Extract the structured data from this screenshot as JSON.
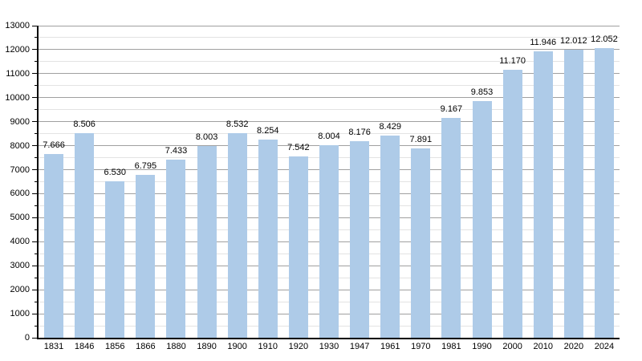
{
  "chart_data": {
    "type": "bar",
    "title": "",
    "xlabel": "",
    "ylabel": "",
    "categories": [
      "1831",
      "1846",
      "1856",
      "1866",
      "1880",
      "1890",
      "1900",
      "1910",
      "1920",
      "1930",
      "1947",
      "1961",
      "1970",
      "1981",
      "1990",
      "2000",
      "2010",
      "2020",
      "2024"
    ],
    "values": [
      7666,
      8506,
      6530,
      6795,
      7433,
      8003,
      8532,
      8254,
      7542,
      8004,
      8176,
      8429,
      7891,
      9167,
      9853,
      11170,
      11946,
      12012,
      12052
    ],
    "value_labels": [
      "7.666",
      "8.506",
      "6.530",
      "6.795",
      "7.433",
      "8.003",
      "8.532",
      "8.254",
      "7.542",
      "8.004",
      "8.176",
      "8.429",
      "7.891",
      "9.167",
      "9.853",
      "11.170",
      "11.946",
      "12.012",
      "12.052"
    ],
    "y_tick_labels": [
      "0",
      "1000",
      "2000",
      "3000",
      "4000",
      "5000",
      "6000",
      "7000",
      "8000",
      "9000",
      "10000",
      "11000",
      "12000",
      "13000"
    ],
    "ylim": [
      0,
      13000
    ],
    "y_major_step": 1000,
    "y_minor_step": 500,
    "grid": true,
    "legend": "none",
    "colors": {
      "bar_fill": "#aecbe8",
      "major_gridline": "#a0a0a0",
      "minor_gridline": "#e3e3e3",
      "axis": "#000000",
      "text": "#000000",
      "background": "#ffffff"
    }
  }
}
